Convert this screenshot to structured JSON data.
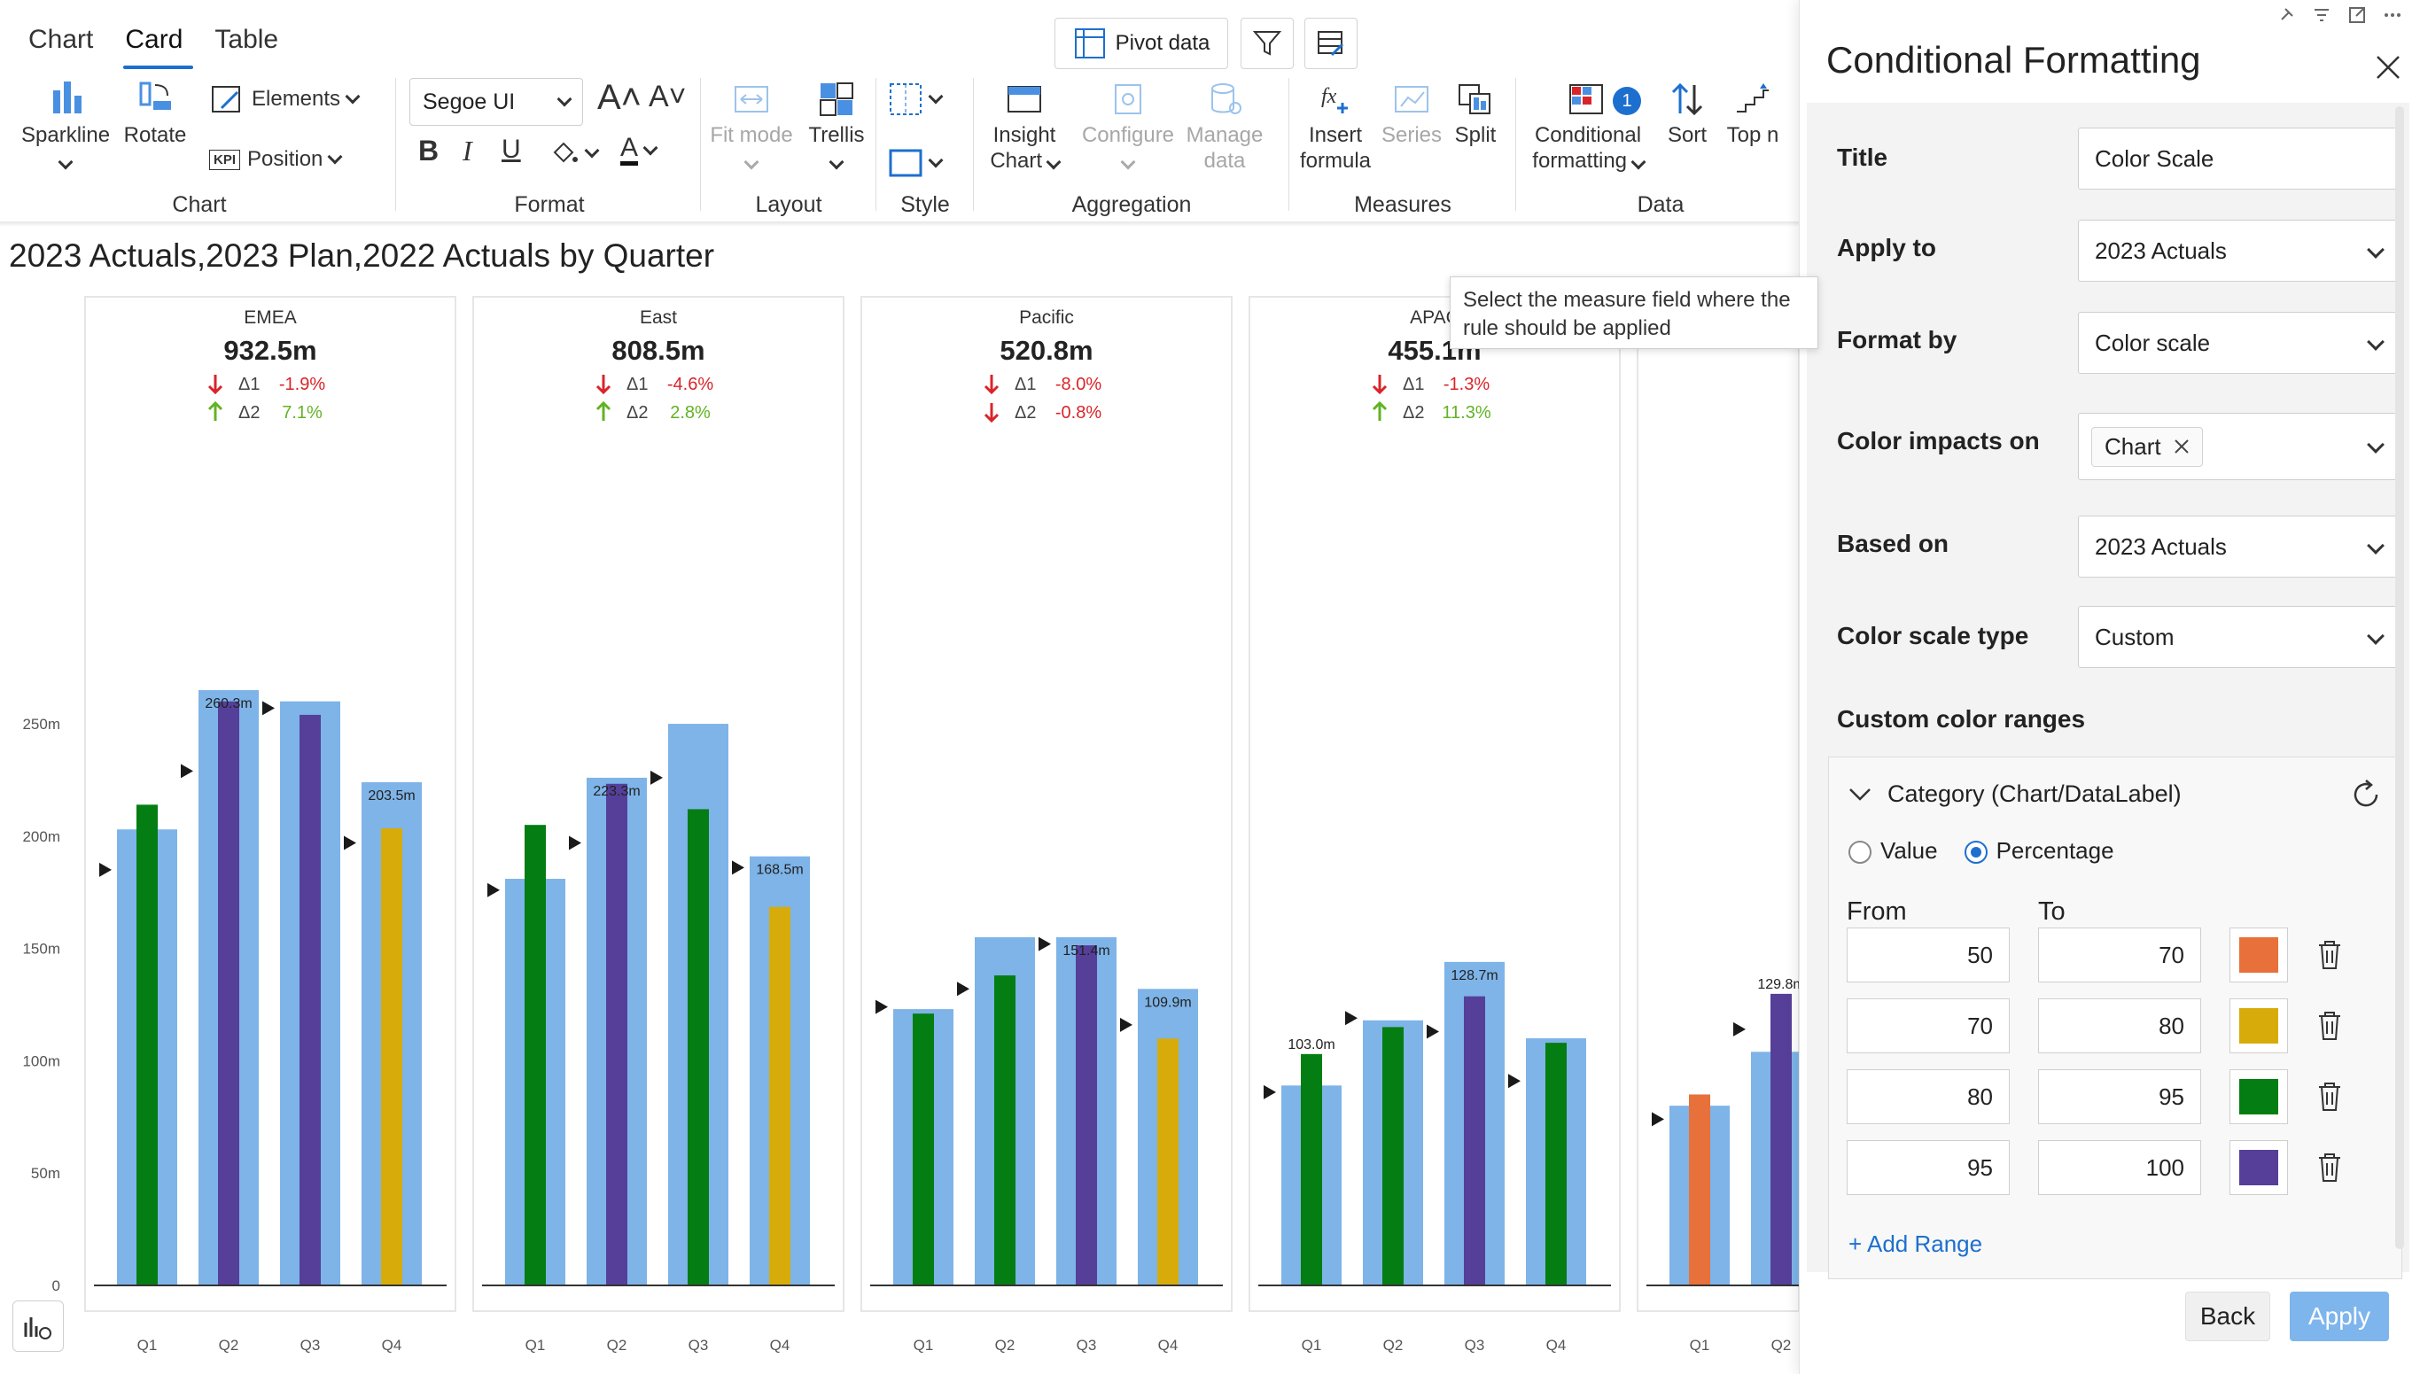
{
  "tabs": [
    "Chart",
    "Card",
    "Table"
  ],
  "active_tab": "Card",
  "top_buttons": {
    "pivot": "Pivot  data"
  },
  "ribbon": {
    "chart_group": {
      "label": "Chart",
      "sparkline": "Sparkline",
      "rotate": "Rotate",
      "elements": "Elements",
      "position": "Position",
      "kpi": "KPI"
    },
    "format_group": {
      "label": "Format",
      "font": "Segoe UI"
    },
    "layout_group": {
      "label": "Layout",
      "fit_mode": "Fit mode",
      "trellis": "Trellis"
    },
    "style_group": {
      "label": "Style"
    },
    "aggregation_group": {
      "label": "Aggregation",
      "insight_line1": "Insight",
      "insight_line2": "Chart",
      "configure": "Configure",
      "manage_line1": "Manage",
      "manage_line2": "data"
    },
    "measures_group": {
      "label": "Measures",
      "insert_line1": "Insert",
      "insert_line2": "formula",
      "series": "Series",
      "split": "Split"
    },
    "data_group": {
      "label": "Data",
      "cf_line1": "Conditional",
      "cf_line2": "formatting",
      "cf_badge": "1",
      "sort": "Sort",
      "topn": "Top n"
    }
  },
  "chart_title": "2023 Actuals,2023 Plan,2022 Actuals by Quarter",
  "tooltip": {
    "line1": "Select the measure field where the",
    "line2": "rule should be applied"
  },
  "chart_data": {
    "type": "bar",
    "y_ticks": [
      "0",
      "50m",
      "100m",
      "150m",
      "200m",
      "250m"
    ],
    "ylim": [
      0,
      280
    ],
    "categories": [
      "Q1",
      "Q2",
      "Q3",
      "Q4"
    ],
    "series_description": [
      "2023 Plan (wide bar)",
      "2023 Actuals (narrow bar)",
      "2022 Actuals (marker)"
    ],
    "panels": [
      {
        "name": "EMEA",
        "total": "932.5m",
        "d1_label": "Δ1",
        "d1": "-1.9%",
        "d1_dir": "down",
        "d2_label": "Δ2",
        "d2": "7.1%",
        "d2_dir": "up",
        "plan": [
          203,
          265,
          260,
          224
        ],
        "actual": [
          214,
          260,
          254,
          203.5
        ],
        "prior": [
          185,
          229,
          257,
          197
        ],
        "colors": [
          "#047d12",
          "#553f99",
          "#553f99",
          "#d7ac0a"
        ],
        "labels": [
          "",
          "260.3m",
          "",
          "203.5m"
        ]
      },
      {
        "name": "East",
        "total": "808.5m",
        "d1_label": "Δ1",
        "d1": "-4.6%",
        "d1_dir": "down",
        "d2_label": "Δ2",
        "d2": "2.8%",
        "d2_dir": "up",
        "plan": [
          181,
          226,
          250,
          191
        ],
        "actual": [
          205,
          223.3,
          212,
          168.5
        ],
        "prior": [
          176,
          197,
          226,
          186
        ],
        "colors": [
          "#047d12",
          "#553f99",
          "#047d12",
          "#d7ac0a"
        ],
        "labels": [
          "",
          "223.3m",
          "",
          "168.5m"
        ]
      },
      {
        "name": "Pacific",
        "total": "520.8m",
        "d1_label": "Δ1",
        "d1": "-8.0%",
        "d1_dir": "down",
        "d2_label": "Δ2",
        "d2": "-0.8%",
        "d2_dir": "down",
        "plan": [
          123,
          155,
          155,
          132
        ],
        "actual": [
          121,
          138,
          151.4,
          109.9
        ],
        "prior": [
          124,
          132,
          152,
          116
        ],
        "colors": [
          "#047d12",
          "#047d12",
          "#553f99",
          "#d7ac0a"
        ],
        "labels": [
          "",
          "",
          "151.4m",
          "109.9m"
        ]
      },
      {
        "name": "APAC",
        "total": "455.1m",
        "d1_label": "Δ1",
        "d1": "-1.3%",
        "d1_dir": "down",
        "d2_label": "Δ2",
        "d2": "11.3%",
        "d2_dir": "up",
        "plan": [
          89,
          118,
          144,
          110
        ],
        "actual": [
          103.0,
          115,
          128.7,
          108
        ],
        "prior": [
          86,
          119,
          113,
          91
        ],
        "colors": [
          "#047d12",
          "#047d12",
          "#553f99",
          "#047d12"
        ],
        "labels": [
          "103.0m",
          "",
          "128.7m",
          ""
        ]
      },
      {
        "name": "",
        "total": "",
        "d1_label": "",
        "d1": "",
        "d1_dir": "up",
        "d2_label": "",
        "d2": "",
        "d2_dir": "up",
        "plan": [
          80,
          104
        ],
        "actual": [
          85,
          129.8
        ],
        "prior": [
          74,
          114
        ],
        "colors": [
          "#e8703a",
          "#553f99"
        ],
        "labels": [
          "",
          "129.8m"
        ]
      }
    ],
    "colors": {
      "plan": "#7eb4e8",
      "marker": "#1a1a1a",
      "up": "#62b323",
      "down": "#d9242a"
    }
  },
  "panel": {
    "title": "Conditional Formatting",
    "rows": [
      {
        "label": "Title",
        "value": "Color Scale",
        "dropdown": false
      },
      {
        "label": "Apply to",
        "value": "2023 Actuals",
        "dropdown": true
      },
      {
        "label": "Format by",
        "value": "Color scale",
        "dropdown": true
      },
      {
        "label": "Color impacts on",
        "value": "Chart",
        "dropdown": true
      },
      {
        "label": "Based on",
        "value": "2023 Actuals",
        "dropdown": true
      },
      {
        "label": "Color scale type",
        "value": "Custom",
        "dropdown": true
      }
    ],
    "section_title": "Custom color ranges",
    "category_label": "Category (Chart/DataLabel)",
    "radio_value": "Value",
    "radio_percentage": "Percentage",
    "from_label": "From",
    "to_label": "To",
    "ranges": [
      {
        "from": "50",
        "to": "70",
        "color": "#e8703a"
      },
      {
        "from": "70",
        "to": "80",
        "color": "#d7ac0a"
      },
      {
        "from": "80",
        "to": "95",
        "color": "#047d12"
      },
      {
        "from": "95",
        "to": "100",
        "color": "#553f99"
      }
    ],
    "add_range": "+ Add Range",
    "back": "Back",
    "apply": "Apply"
  }
}
